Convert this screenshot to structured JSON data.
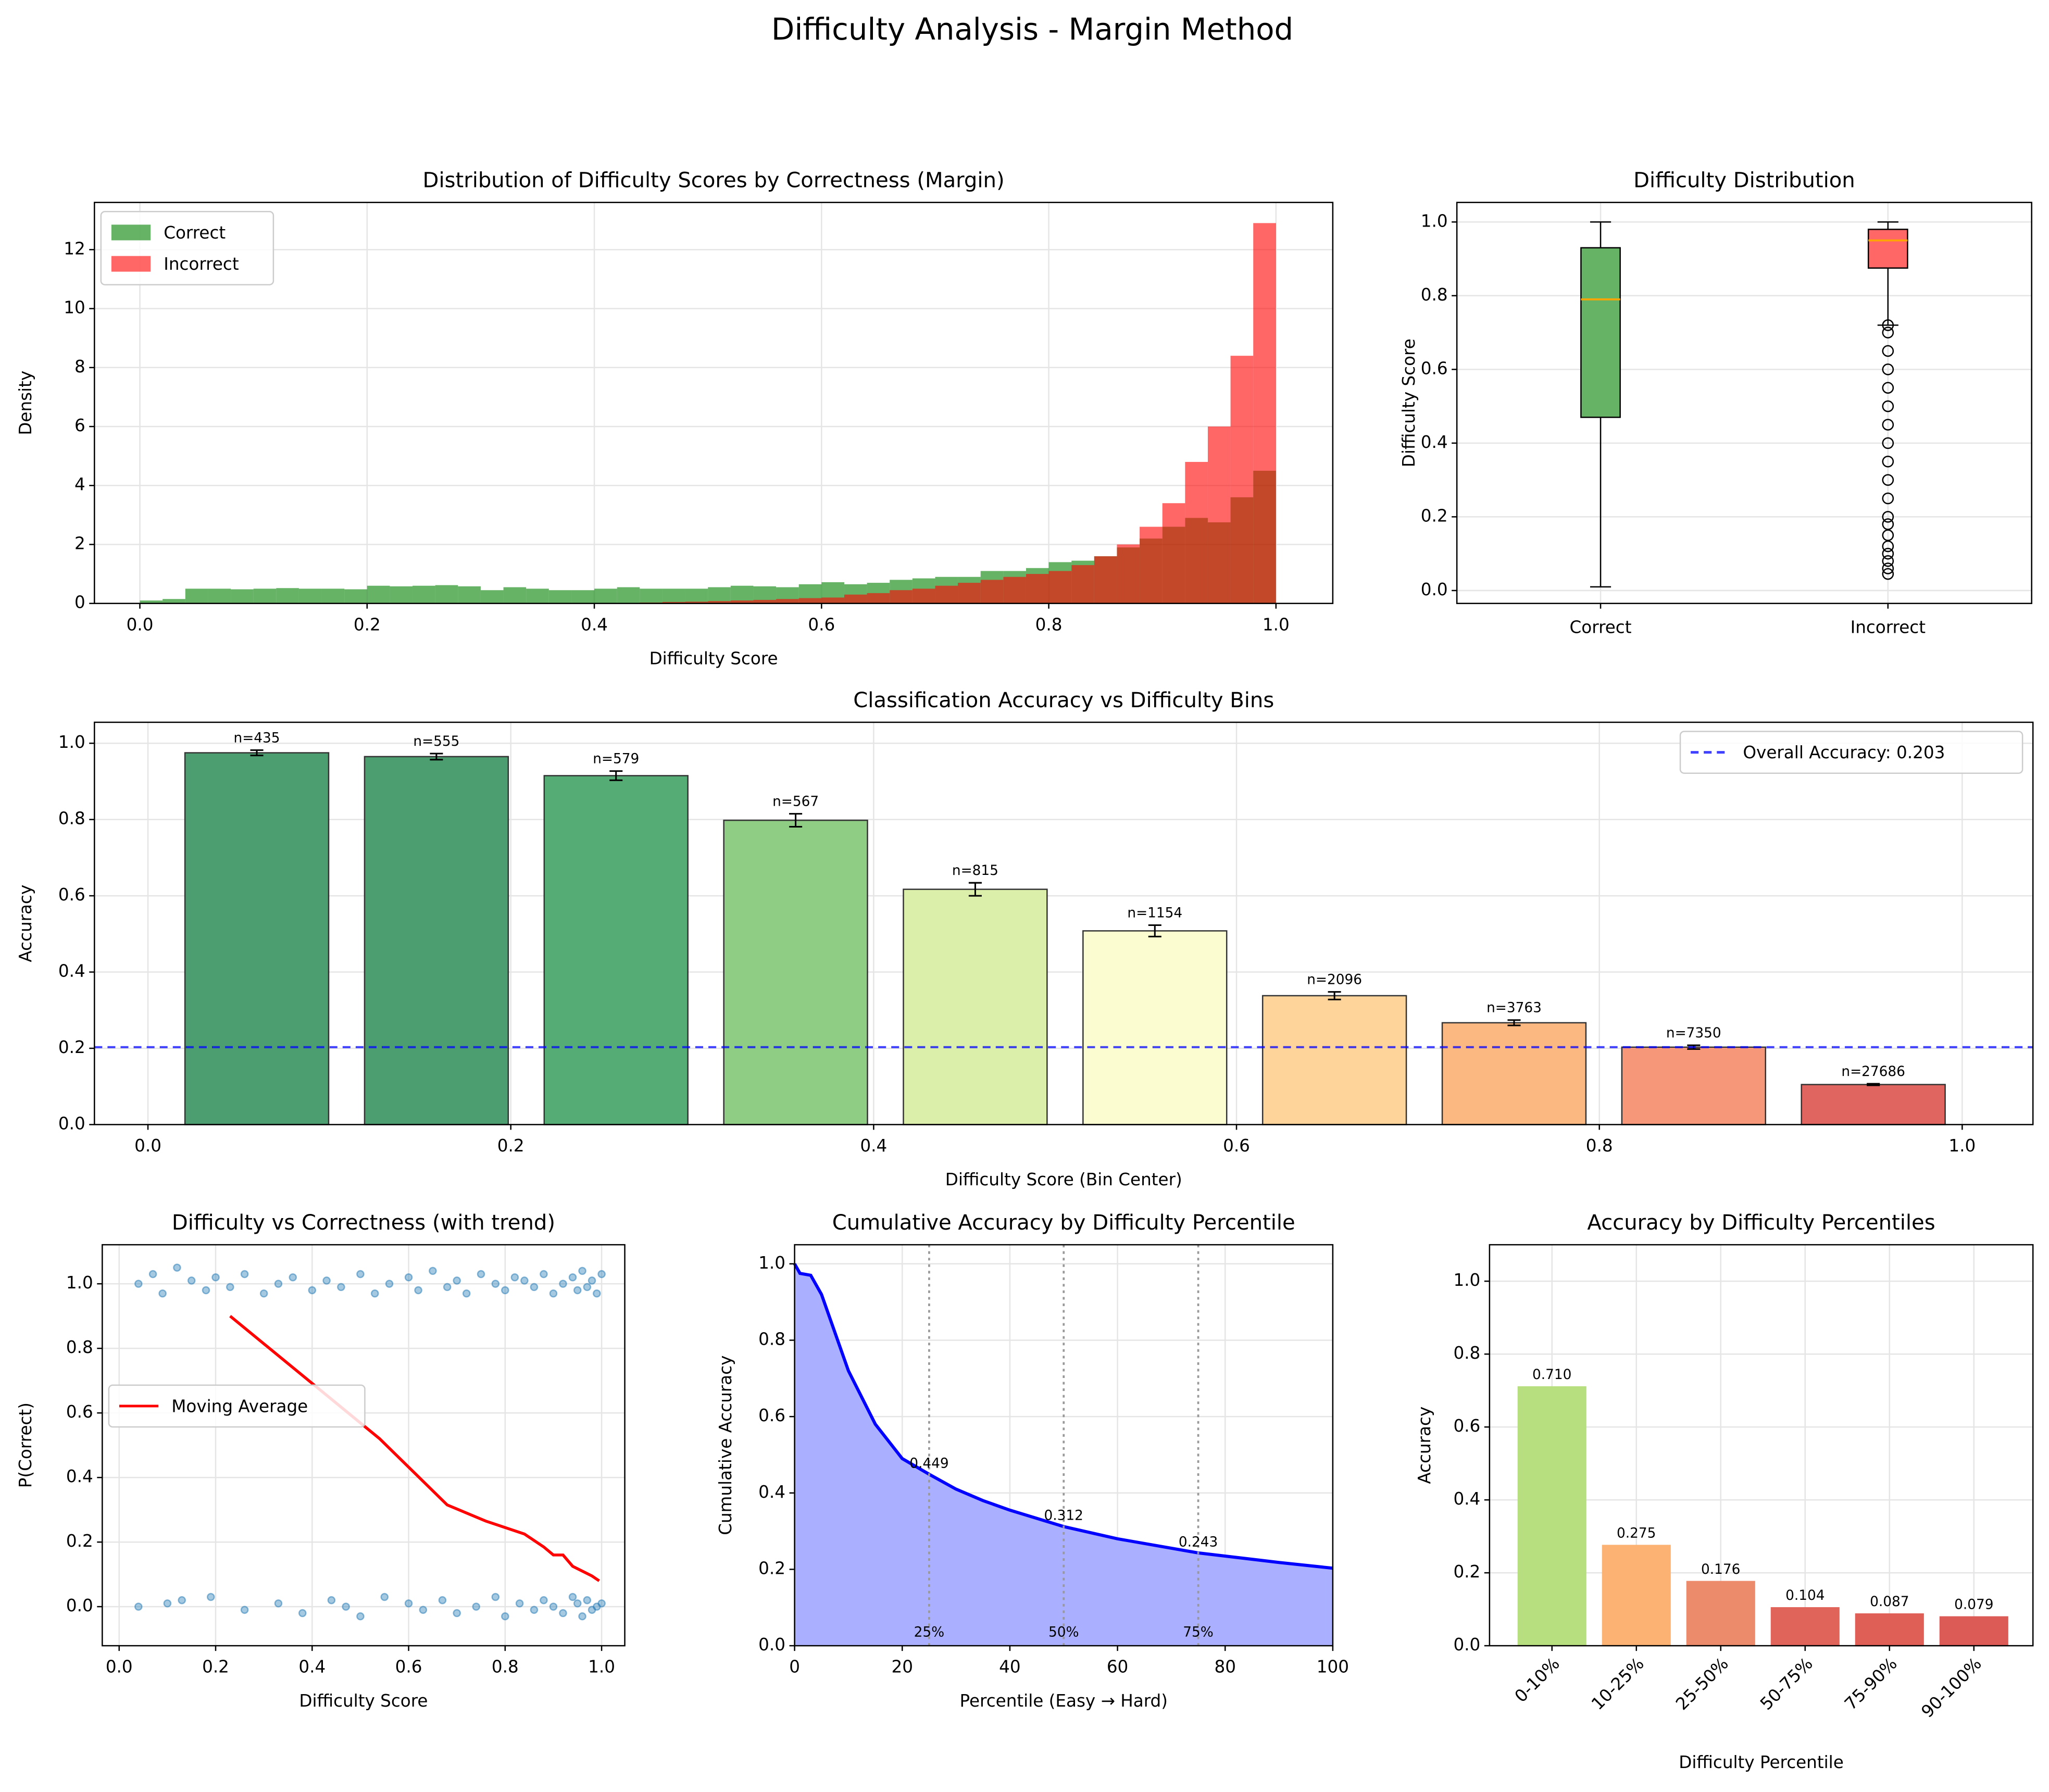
{
  "title": "Difficulty Analysis - Margin Method",
  "chart_data": [
    {
      "type": "histogram",
      "title": "Distribution of Difficulty Scores by Correctness (Margin)",
      "xlabel": "Difficulty Score",
      "ylabel": "Density",
      "bins": [
        0,
        0.02,
        0.04,
        0.06,
        0.08,
        0.1,
        0.12,
        0.14,
        0.16,
        0.18,
        0.2,
        0.22,
        0.24,
        0.26,
        0.28,
        0.3,
        0.32,
        0.34,
        0.36,
        0.38,
        0.4,
        0.42,
        0.44,
        0.46,
        0.48,
        0.5,
        0.52,
        0.54,
        0.56,
        0.58,
        0.6,
        0.62,
        0.64,
        0.66,
        0.68,
        0.7,
        0.72,
        0.74,
        0.76,
        0.78,
        0.8,
        0.82,
        0.84,
        0.86,
        0.88,
        0.9,
        0.92,
        0.94,
        0.96,
        0.98,
        1
      ],
      "series": [
        {
          "name": "Correct",
          "color": "green",
          "values": [
            0.1,
            0.15,
            0.5,
            0.5,
            0.48,
            0.5,
            0.52,
            0.5,
            0.5,
            0.48,
            0.6,
            0.58,
            0.6,
            0.62,
            0.58,
            0.45,
            0.55,
            0.5,
            0.45,
            0.45,
            0.5,
            0.55,
            0.5,
            0.5,
            0.5,
            0.55,
            0.6,
            0.58,
            0.55,
            0.65,
            0.72,
            0.65,
            0.7,
            0.8,
            0.85,
            0.9,
            0.9,
            1.1,
            1.1,
            1.2,
            1.4,
            1.45,
            1.6,
            1.9,
            2.2,
            2.6,
            2.9,
            2.75,
            3.6,
            4.5
          ]
        },
        {
          "name": "Incorrect",
          "color": "red",
          "values": [
            0,
            0,
            0,
            0,
            0,
            0,
            0,
            0,
            0,
            0,
            0,
            0,
            0,
            0,
            0,
            0,
            0,
            0,
            0,
            0,
            0,
            0,
            0.03,
            0.05,
            0.06,
            0.08,
            0.1,
            0.12,
            0.15,
            0.18,
            0.2,
            0.3,
            0.35,
            0.45,
            0.5,
            0.6,
            0.7,
            0.8,
            0.9,
            1.0,
            1.1,
            1.3,
            1.6,
            2.0,
            2.6,
            3.4,
            4.8,
            6.0,
            8.4,
            12.9
          ]
        }
      ],
      "xlim": [
        -0.04,
        1.05
      ],
      "xticks": [
        {
          "value": 0,
          "label": "0.0"
        },
        0.2,
        0.4,
        0.6,
        0.8,
        {
          "value": 1,
          "label": "1.0"
        }
      ],
      "ylim": [
        0,
        13.6
      ],
      "yticks": [
        0,
        2,
        4,
        6,
        8,
        10,
        12
      ],
      "grid": true,
      "legend": "upper left",
      "opacity": 0.6
    },
    {
      "type": "box",
      "title": "Difficulty Distribution",
      "ylabel": "Difficulty Score",
      "series": [
        {
          "name": "Correct",
          "color": "#66b366",
          "whislo": 0.01,
          "q1": 0.47,
          "med": 0.79,
          "q3": 0.93,
          "whishi": 1.0,
          "fliers": []
        },
        {
          "name": "Incorrect",
          "color": "#ff6666",
          "whislo": 0.72,
          "q1": 0.875,
          "med": 0.95,
          "q3": 0.98,
          "whishi": 1.0,
          "fliers": [
            0.045,
            0.06,
            0.08,
            0.1,
            0.12,
            0.15,
            0.18,
            0.2,
            0.25,
            0.3,
            0.35,
            0.4,
            0.45,
            0.5,
            0.55,
            0.6,
            0.65,
            0.7,
            0.72
          ]
        }
      ],
      "median_color": "orange",
      "ylim": [
        -0.035,
        1.053
      ],
      "yticks": [
        {
          "value": 0,
          "label": "0.0"
        },
        0.2,
        0.4,
        0.6,
        0.8,
        {
          "value": 1,
          "label": "1.0"
        }
      ],
      "grid": true
    },
    {
      "type": "bar",
      "title": "Classification Accuracy vs Difficulty Bins",
      "xlabel": "Difficulty Score (Bin Center)",
      "ylabel": "Accuracy",
      "x": [
        0.06,
        0.159,
        0.258,
        0.357,
        0.456,
        0.555,
        0.654,
        0.753,
        0.852,
        0.951
      ],
      "values": [
        0.975,
        0.965,
        0.915,
        0.798,
        0.617,
        0.508,
        0.338,
        0.267,
        0.203,
        0.105
      ],
      "errors": [
        0.007,
        0.008,
        0.012,
        0.017,
        0.017,
        0.015,
        0.01,
        0.007,
        0.005,
        0.002
      ],
      "annotations": [
        "n=435",
        "n=555",
        "n=579",
        "n=567",
        "n=815",
        "n=1154",
        "n=2096",
        "n=3763",
        "n=7350",
        "n=27686"
      ],
      "colors": [
        "#4c9d6f",
        "#4c9d6f",
        "#55ad75",
        "#8fcc84",
        "#dcefaa",
        "#fbfdd0",
        "#fed49a",
        "#fbb880",
        "#f6977a",
        "#e0645f"
      ],
      "hline": {
        "value": 0.203,
        "label": "Overall Accuracy: 0.203",
        "color": "blue"
      },
      "xlim": [
        -0.0295,
        1.039
      ],
      "xticks": [
        {
          "value": 0,
          "label": "0.0"
        },
        0.2,
        0.4,
        0.6,
        0.8,
        {
          "value": 1,
          "label": "1.0"
        }
      ],
      "ylim": [
        0,
        1.055
      ],
      "yticks": [
        {
          "value": 0,
          "label": "0.0"
        },
        0.2,
        0.4,
        0.6,
        0.8,
        {
          "value": 1,
          "label": "1.0"
        }
      ],
      "grid": true,
      "legend": "upper right"
    },
    {
      "type": "scatter",
      "title": "Difficulty vs Correctness (with trend)",
      "xlabel": "Difficulty Score",
      "ylabel": "P(Correct)",
      "points": {
        "color": "#1f77b4",
        "x": [
          0.04,
          0.07,
          0.09,
          0.12,
          0.15,
          0.18,
          0.2,
          0.23,
          0.26,
          0.3,
          0.33,
          0.36,
          0.4,
          0.43,
          0.46,
          0.5,
          0.53,
          0.56,
          0.6,
          0.62,
          0.65,
          0.68,
          0.7,
          0.72,
          0.75,
          0.78,
          0.8,
          0.82,
          0.84,
          0.86,
          0.88,
          0.9,
          0.92,
          0.94,
          0.95,
          0.96,
          0.97,
          0.98,
          0.99,
          1.0,
          0.04,
          0.1,
          0.13,
          0.19,
          0.26,
          0.33,
          0.38,
          0.44,
          0.47,
          0.5,
          0.55,
          0.6,
          0.63,
          0.67,
          0.7,
          0.74,
          0.78,
          0.8,
          0.83,
          0.86,
          0.88,
          0.9,
          0.92,
          0.94,
          0.95,
          0.96,
          0.97,
          0.98,
          0.99,
          1.0
        ],
        "y": [
          1.0,
          1.03,
          0.97,
          1.05,
          1.01,
          0.98,
          1.02,
          0.99,
          1.03,
          0.97,
          1.0,
          1.02,
          0.98,
          1.01,
          0.99,
          1.03,
          0.97,
          1.0,
          1.02,
          0.98,
          1.04,
          0.99,
          1.01,
          0.97,
          1.03,
          1.0,
          0.98,
          1.02,
          1.01,
          0.99,
          1.03,
          0.97,
          1.0,
          1.02,
          0.98,
          1.04,
          0.99,
          1.01,
          0.97,
          1.03,
          0.0,
          0.01,
          0.02,
          0.03,
          -0.01,
          0.01,
          -0.02,
          0.02,
          0.0,
          -0.03,
          0.03,
          0.01,
          -0.01,
          0.02,
          -0.02,
          0.0,
          0.03,
          -0.03,
          0.01,
          -0.01,
          0.02,
          0.0,
          -0.02,
          0.03,
          0.01,
          -0.03,
          0.02,
          -0.01,
          0.0,
          0.01
        ]
      },
      "series": [
        {
          "name": "Moving Average",
          "color": "red",
          "x": [
            0.23,
            0.54,
            0.68,
            0.76,
            0.84,
            0.88,
            0.9,
            0.92,
            0.94,
            0.96,
            0.98,
            0.995
          ],
          "values": [
            0.9,
            0.52,
            0.315,
            0.265,
            0.225,
            0.185,
            0.16,
            0.16,
            0.125,
            0.11,
            0.095,
            0.08
          ]
        }
      ],
      "xlim": [
        -0.035,
        1.048
      ],
      "xticks": [
        {
          "value": 0,
          "label": "0.0"
        },
        0.2,
        0.4,
        0.6,
        0.8,
        {
          "value": 1,
          "label": "1.0"
        }
      ],
      "ylim": [
        -0.121,
        1.121
      ],
      "yticks": [
        {
          "value": 0,
          "label": "0.0"
        },
        0.2,
        0.4,
        0.6,
        0.8,
        {
          "value": 1,
          "label": "1.0"
        }
      ],
      "grid": true,
      "legend": "center left"
    },
    {
      "type": "area",
      "title": "Cumulative Accuracy by Difficulty Percentile",
      "xlabel": "Percentile (Easy → Hard)",
      "ylabel": "Cumulative Accuracy",
      "x": [
        0,
        1,
        3,
        5,
        8,
        10,
        15,
        20,
        25,
        30,
        35,
        40,
        50,
        60,
        75,
        90,
        100
      ],
      "values": [
        1.0,
        0.975,
        0.97,
        0.92,
        0.8,
        0.72,
        0.58,
        0.49,
        0.449,
        0.41,
        0.38,
        0.355,
        0.312,
        0.28,
        0.243,
        0.218,
        0.203
      ],
      "color": "blue",
      "fill": "#aab0ff",
      "markers": [
        {
          "x": 25,
          "value": 0.449,
          "label": "25%"
        },
        {
          "x": 50,
          "value": 0.312,
          "label": "50%"
        },
        {
          "x": 75,
          "value": 0.243,
          "label": "75%"
        }
      ],
      "xlim": [
        0,
        100
      ],
      "xticks": [
        0,
        20,
        40,
        60,
        80,
        100
      ],
      "ylim": [
        0,
        1.05
      ],
      "yticks": [
        {
          "value": 0,
          "label": "0.0"
        },
        0.2,
        0.4,
        0.6,
        0.8,
        {
          "value": 1,
          "label": "1.0"
        }
      ],
      "grid": true
    },
    {
      "type": "bar",
      "title": "Accuracy by Difficulty Percentiles",
      "xlabel": "Difficulty Percentile",
      "ylabel": "Accuracy",
      "categories": [
        "0-10%",
        "10-25%",
        "25-50%",
        "50-75%",
        "75-90%",
        "90-100%"
      ],
      "values": [
        0.71,
        0.275,
        0.176,
        0.104,
        0.087,
        0.079
      ],
      "value_labels": [
        "0.710",
        "0.275",
        "0.176",
        "0.104",
        "0.087",
        "0.079"
      ],
      "colors": [
        "#b8df7f",
        "#fbb272",
        "#ec8a6c",
        "#e0645a",
        "#df5f57",
        "#dc5b57"
      ],
      "ylim": [
        0,
        1.1
      ],
      "yticks": [
        {
          "value": 0,
          "label": "0.0"
        },
        0.2,
        0.4,
        0.6,
        0.8,
        {
          "value": 1,
          "label": "1.0"
        }
      ],
      "grid": true
    }
  ]
}
